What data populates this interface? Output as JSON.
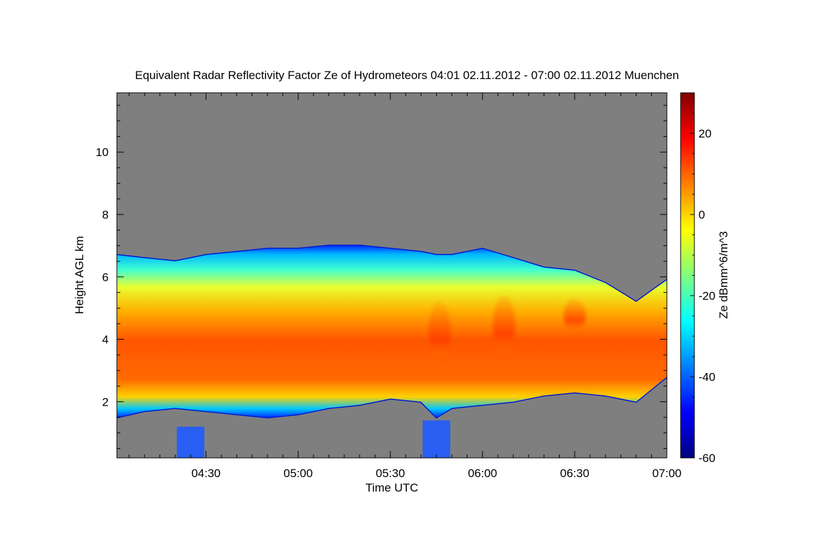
{
  "title": "Equivalent Radar Reflectivity Factor Ze of Hydrometeors   04:01 02.11.2012 - 07:00 02.11.2012 Muenchen",
  "colors": {
    "background": "#7f7f7f",
    "colormap": [
      "#00007f",
      "#0000ff",
      "#007fff",
      "#00ffff",
      "#7fff7f",
      "#ffff00",
      "#ff7f00",
      "#ff0000",
      "#7f0000"
    ]
  },
  "chart_data": {
    "type": "heatmap",
    "title": "Equivalent Radar Reflectivity Factor Ze of Hydrometeors   04:01 02.11.2012 - 07:00 02.11.2012 Muenchen",
    "xlabel": "Time UTC",
    "ylabel": "Height AGL km",
    "xlim": [
      "04:01",
      "07:00"
    ],
    "ylim": [
      0.2,
      11.9
    ],
    "xticks": [
      "04:30",
      "05:00",
      "05:30",
      "06:00",
      "06:30",
      "07:00"
    ],
    "yticks": [
      "2",
      "4",
      "6",
      "8",
      "10"
    ],
    "colorbar": {
      "label": "Ze dBmm^6/m^3",
      "range": [
        -60,
        30
      ],
      "ticks": [
        "20",
        "0",
        "-20",
        "-40",
        "-60"
      ]
    },
    "cloud_profile": {
      "times": [
        "04:01",
        "04:10",
        "04:20",
        "04:30",
        "04:40",
        "04:50",
        "05:00",
        "05:10",
        "05:20",
        "05:30",
        "05:40",
        "05:45",
        "05:50",
        "06:00",
        "06:10",
        "06:20",
        "06:30",
        "06:40",
        "06:50",
        "07:00"
      ],
      "top_km": [
        6.7,
        6.6,
        6.5,
        6.7,
        6.8,
        6.9,
        6.9,
        7.0,
        7.0,
        6.9,
        6.8,
        6.7,
        6.7,
        6.9,
        6.6,
        6.3,
        6.2,
        5.8,
        5.2,
        5.9
      ],
      "base_km": [
        1.5,
        1.7,
        1.8,
        1.7,
        1.6,
        1.5,
        1.6,
        1.8,
        1.9,
        2.1,
        2.0,
        1.5,
        1.8,
        1.9,
        2.0,
        2.2,
        2.3,
        2.2,
        2.0,
        2.8
      ]
    },
    "fall_streaks": [
      {
        "time": "04:25",
        "top_km": 1.2,
        "base_km": 0.2
      },
      {
        "time": "05:45",
        "top_km": 1.4,
        "base_km": 0.2
      }
    ],
    "strong_cores": [
      {
        "time": "05:46",
        "top_km": 5.2,
        "base_km": 3.3
      },
      {
        "time": "06:07",
        "top_km": 5.4,
        "base_km": 3.5
      },
      {
        "time": "06:30",
        "top_km": 5.3,
        "base_km": 4.2
      }
    ]
  }
}
